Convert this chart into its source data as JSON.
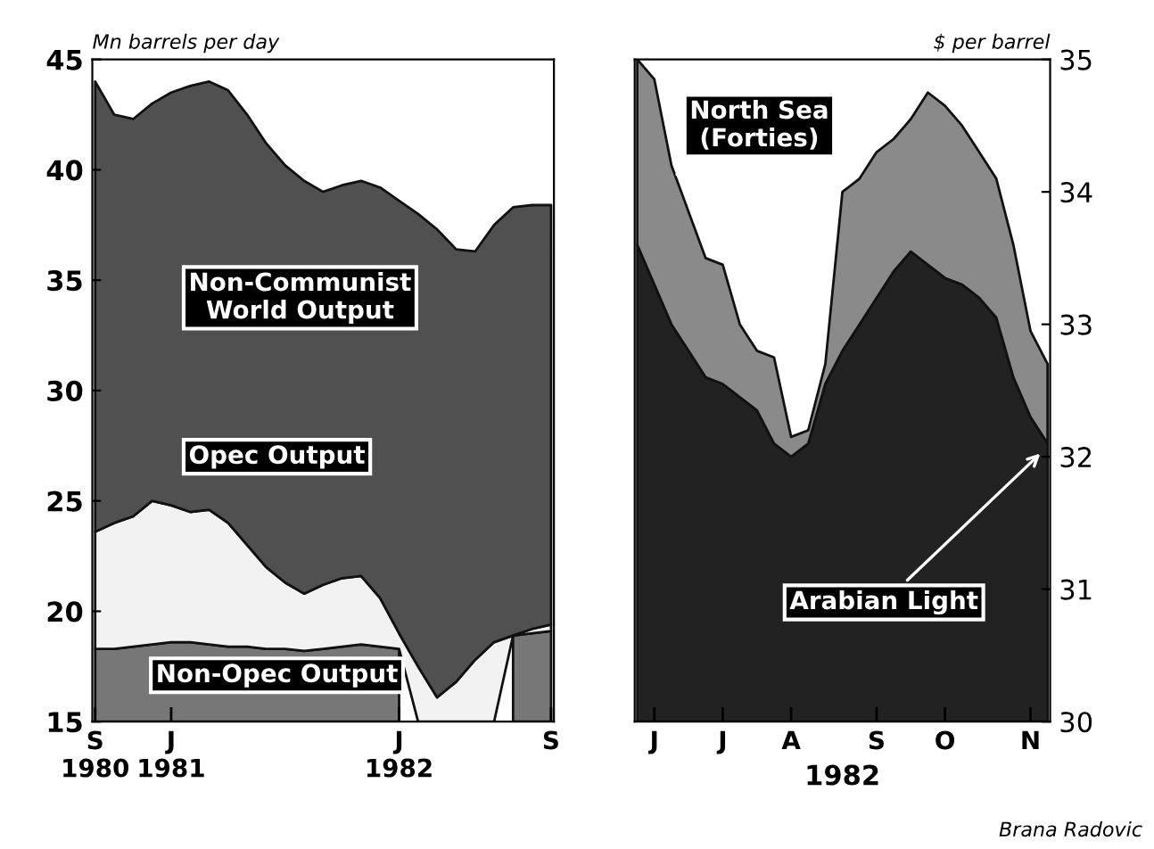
{
  "chart_data": [
    {
      "type": "area",
      "ylabel": "Mn barrels per day",
      "categories": [
        "S\n1980",
        null,
        null,
        null,
        "J\n1981",
        null,
        null,
        null,
        null,
        null,
        null,
        null,
        null,
        null,
        null,
        null,
        "J\n1982",
        null,
        null,
        null,
        null,
        null,
        null,
        null,
        "S"
      ],
      "series": [
        {
          "color": "#505050",
          "values": [
            44,
            42.5,
            42.3,
            43,
            43.5,
            43.8,
            44,
            43.6,
            42.5,
            41.2,
            40.2,
            39.5,
            39,
            39.3,
            39.5,
            39.2,
            38.6,
            38,
            37.3,
            36.4,
            36.3,
            37.5,
            38.3,
            38.4,
            38.4
          ]
        },
        {
          "color": "#f2f2f2",
          "values": [
            23.6,
            24,
            24.3,
            25,
            24.8,
            24.5,
            24.6,
            24,
            23,
            22,
            21.3,
            20.8,
            21.2,
            21.5,
            21.6,
            20.6,
            19,
            17.5,
            16.1,
            16.8,
            17.8,
            18.6,
            18.9,
            19.2,
            19.4
          ]
        },
        {
          "color": "#777777",
          "values": [
            18.3,
            18.3,
            18.4,
            18.5,
            18.6,
            18.6,
            18.5,
            18.4,
            18.4,
            18.3,
            18.3,
            18.2,
            18.3,
            18.4,
            18.5,
            18.4,
            18.3,
            null,
            null,
            null,
            null,
            null,
            18.9,
            19,
            19.1
          ]
        }
      ],
      "ylim": [
        15,
        45
      ],
      "yticks": [
        15,
        20,
        25,
        30,
        35,
        40,
        45
      ],
      "annotations": [
        "Non-Communist\nWorld Output",
        "Opec Output",
        "Non-Opec Output"
      ]
    },
    {
      "type": "area",
      "ylabel": "$ per barrel",
      "xlabel": "1982",
      "categories": [
        null,
        "J",
        null,
        null,
        null,
        "J",
        null,
        null,
        null,
        "A",
        null,
        null,
        null,
        null,
        "S",
        null,
        null,
        null,
        "O",
        null,
        null,
        null,
        null,
        "N",
        null
      ],
      "series": [
        {
          "color": "#8a8a8a",
          "values": [
            35.0,
            34.85,
            34.2,
            33.85,
            33.5,
            33.45,
            33.0,
            32.8,
            32.75,
            32.15,
            32.2,
            32.7,
            34.0,
            34.1,
            34.3,
            34.4,
            34.55,
            34.75,
            34.65,
            34.5,
            34.3,
            34.1,
            33.6,
            32.95,
            32.7
          ]
        },
        {
          "color": "#222222",
          "values": [
            33.6,
            33.3,
            33.0,
            32.8,
            32.6,
            32.55,
            32.45,
            32.35,
            32.1,
            32.0,
            32.1,
            32.55,
            32.8,
            33.0,
            33.2,
            33.4,
            33.55,
            33.45,
            33.35,
            33.3,
            33.2,
            33.05,
            32.6,
            32.3,
            32.1
          ]
        }
      ],
      "ylim": [
        30,
        35
      ],
      "yticks": [
        30,
        31,
        32,
        33,
        34,
        35
      ],
      "annotations": [
        "North Sea\n(Forties)",
        "Arabian Light",
        "Brana Radovic"
      ]
    }
  ]
}
